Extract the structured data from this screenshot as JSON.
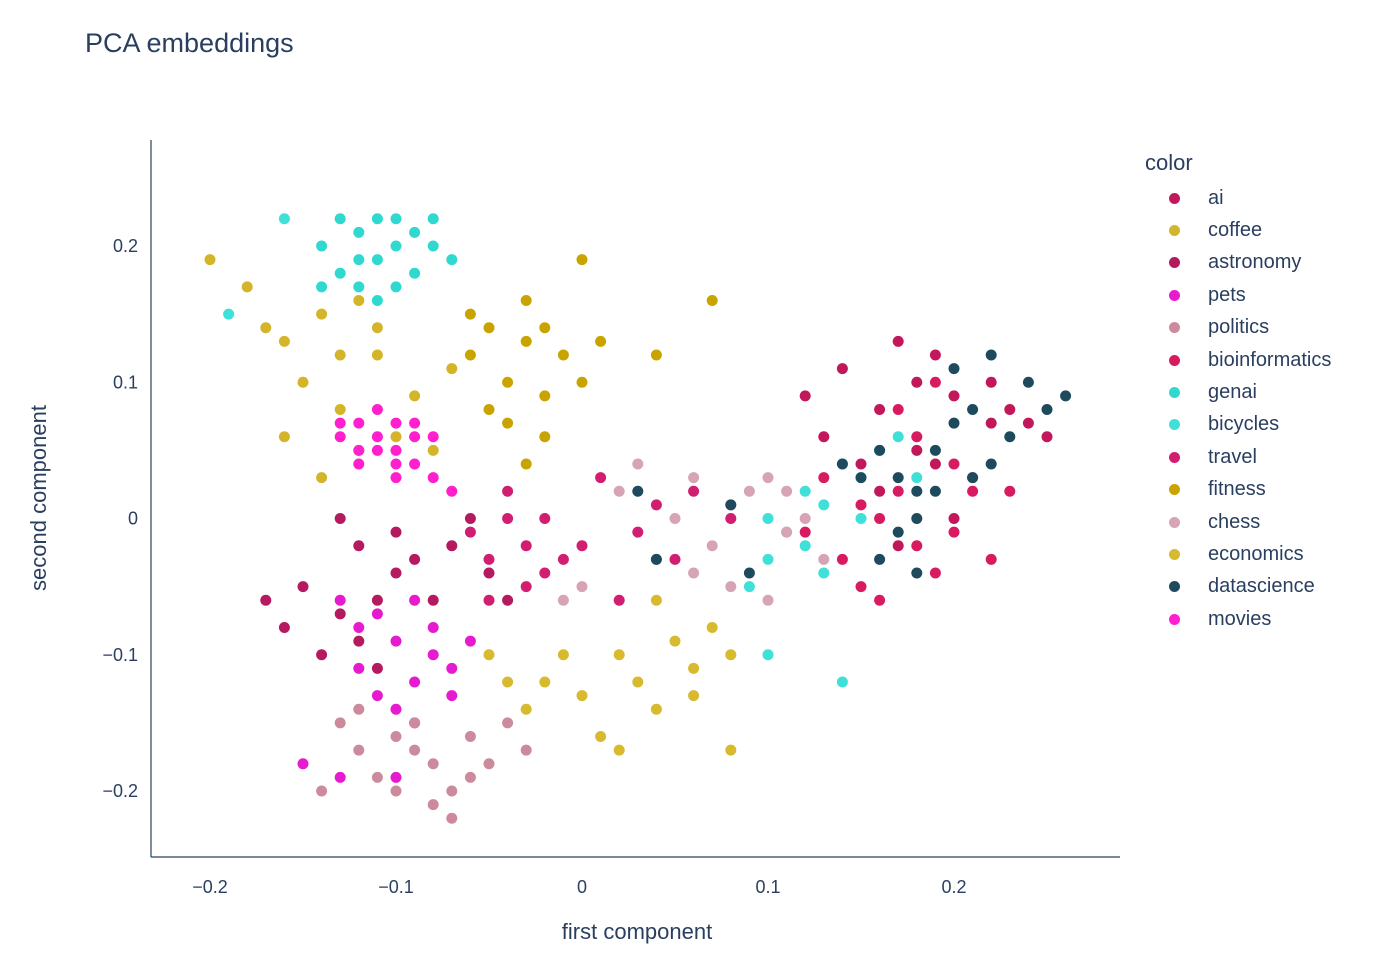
{
  "chart_data": {
    "type": "scatter",
    "title": "PCA embeddings",
    "xlabel": "first component",
    "ylabel": "second component",
    "xlim": [
      -0.23,
      0.29
    ],
    "ylim": [
      -0.25,
      0.275
    ],
    "xticks": [
      -0.2,
      -0.1,
      0,
      0.1,
      0.2
    ],
    "xtick_labels": [
      "−0.2",
      "−0.1",
      "0",
      "0.1",
      "0.2"
    ],
    "yticks": [
      -0.2,
      -0.1,
      0,
      0.1,
      0.2
    ],
    "ytick_labels": [
      "−0.2",
      "−0.1",
      "0",
      "0.1",
      "0.2"
    ],
    "grid": false,
    "legend_title": "color",
    "legend_position": "right",
    "series": [
      {
        "name": "ai",
        "color": "#c2185b",
        "points": [
          [
            0.14,
            0.11
          ],
          [
            0.16,
            0.08
          ],
          [
            0.18,
            0.05
          ],
          [
            0.2,
            0.09
          ],
          [
            0.22,
            0.07
          ],
          [
            0.24,
            0.07
          ],
          [
            0.19,
            0.12
          ],
          [
            0.17,
            0.13
          ],
          [
            0.15,
            0.04
          ],
          [
            0.21,
            0.03
          ],
          [
            0.13,
            0.06
          ],
          [
            0.25,
            0.06
          ],
          [
            0.23,
            0.08
          ],
          [
            0.18,
            0.1
          ],
          [
            0.16,
            0.02
          ],
          [
            0.2,
            0.0
          ],
          [
            0.12,
            0.09
          ],
          [
            0.22,
            0.1
          ],
          [
            0.17,
            -0.02
          ],
          [
            0.19,
            0.04
          ]
        ]
      },
      {
        "name": "coffee",
        "color": "#d4b52a",
        "points": [
          [
            -0.2,
            0.19
          ],
          [
            -0.18,
            0.17
          ],
          [
            -0.16,
            0.13
          ],
          [
            -0.14,
            0.15
          ],
          [
            -0.12,
            0.16
          ],
          [
            -0.15,
            0.1
          ],
          [
            -0.13,
            0.08
          ],
          [
            -0.11,
            0.12
          ],
          [
            -0.1,
            0.06
          ],
          [
            -0.12,
            0.05
          ],
          [
            -0.17,
            0.14
          ],
          [
            -0.14,
            0.03
          ],
          [
            -0.09,
            0.09
          ],
          [
            -0.16,
            0.06
          ],
          [
            -0.11,
            0.14
          ],
          [
            -0.13,
            0.12
          ],
          [
            -0.08,
            0.05
          ],
          [
            -0.07,
            0.11
          ]
        ]
      },
      {
        "name": "astronomy",
        "color": "#b5195f",
        "points": [
          [
            -0.15,
            -0.05
          ],
          [
            -0.13,
            -0.07
          ],
          [
            -0.12,
            -0.02
          ],
          [
            -0.1,
            -0.04
          ],
          [
            -0.14,
            -0.1
          ],
          [
            -0.11,
            -0.06
          ],
          [
            -0.09,
            -0.03
          ],
          [
            -0.12,
            -0.09
          ],
          [
            -0.16,
            -0.08
          ],
          [
            -0.08,
            -0.06
          ],
          [
            -0.1,
            -0.01
          ],
          [
            -0.13,
            0.0
          ],
          [
            -0.07,
            -0.02
          ],
          [
            -0.17,
            -0.06
          ],
          [
            -0.05,
            -0.04
          ],
          [
            -0.04,
            -0.06
          ],
          [
            -0.06,
            0.0
          ],
          [
            -0.11,
            -0.11
          ]
        ]
      },
      {
        "name": "pets",
        "color": "#e61bd0",
        "points": [
          [
            -0.11,
            -0.07
          ],
          [
            -0.1,
            -0.09
          ],
          [
            -0.09,
            -0.12
          ],
          [
            -0.08,
            -0.1
          ],
          [
            -0.12,
            -0.11
          ],
          [
            -0.09,
            -0.06
          ],
          [
            -0.07,
            -0.13
          ],
          [
            -0.1,
            -0.14
          ],
          [
            -0.08,
            -0.08
          ],
          [
            -0.06,
            -0.09
          ],
          [
            -0.11,
            -0.13
          ],
          [
            -0.12,
            -0.08
          ],
          [
            -0.09,
            -0.15
          ],
          [
            -0.07,
            -0.11
          ],
          [
            -0.13,
            -0.06
          ],
          [
            -0.15,
            -0.18
          ],
          [
            -0.13,
            -0.19
          ],
          [
            -0.1,
            -0.19
          ]
        ]
      },
      {
        "name": "politics",
        "color": "#cc8a9d",
        "points": [
          [
            -0.12,
            -0.17
          ],
          [
            -0.1,
            -0.16
          ],
          [
            -0.08,
            -0.18
          ],
          [
            -0.11,
            -0.19
          ],
          [
            -0.07,
            -0.2
          ],
          [
            -0.09,
            -0.17
          ],
          [
            -0.13,
            -0.15
          ],
          [
            -0.06,
            -0.16
          ],
          [
            -0.05,
            -0.18
          ],
          [
            -0.1,
            -0.2
          ],
          [
            -0.08,
            -0.21
          ],
          [
            -0.14,
            -0.2
          ],
          [
            -0.04,
            -0.15
          ],
          [
            -0.06,
            -0.19
          ],
          [
            -0.12,
            -0.14
          ],
          [
            -0.03,
            -0.17
          ],
          [
            -0.07,
            -0.22
          ],
          [
            -0.09,
            -0.15
          ]
        ]
      },
      {
        "name": "bioinformatics",
        "color": "#d81b60",
        "points": [
          [
            0.16,
            0.0
          ],
          [
            0.18,
            -0.02
          ],
          [
            0.2,
            -0.01
          ],
          [
            0.14,
            -0.03
          ],
          [
            0.17,
            0.02
          ],
          [
            0.19,
            -0.04
          ],
          [
            0.15,
            -0.05
          ],
          [
            0.21,
            0.02
          ],
          [
            0.13,
            0.03
          ],
          [
            0.18,
            0.06
          ],
          [
            0.16,
            -0.06
          ],
          [
            0.22,
            -0.03
          ],
          [
            0.12,
            -0.01
          ],
          [
            0.2,
            0.04
          ],
          [
            0.17,
            0.08
          ],
          [
            0.15,
            0.01
          ],
          [
            0.19,
            0.1
          ],
          [
            0.23,
            0.02
          ]
        ]
      },
      {
        "name": "genai",
        "color": "#30d9d0",
        "points": [
          [
            -0.14,
            0.2
          ],
          [
            -0.13,
            0.18
          ],
          [
            -0.12,
            0.21
          ],
          [
            -0.11,
            0.19
          ],
          [
            -0.1,
            0.2
          ],
          [
            -0.12,
            0.17
          ],
          [
            -0.09,
            0.18
          ],
          [
            -0.08,
            0.2
          ],
          [
            -0.13,
            0.22
          ],
          [
            -0.11,
            0.22
          ],
          [
            -0.1,
            0.17
          ],
          [
            -0.14,
            0.17
          ],
          [
            -0.09,
            0.21
          ],
          [
            -0.12,
            0.19
          ],
          [
            -0.08,
            0.22
          ],
          [
            -0.07,
            0.19
          ],
          [
            -0.1,
            0.22
          ],
          [
            -0.11,
            0.16
          ]
        ]
      },
      {
        "name": "bicycles",
        "color": "#3fe0d8",
        "points": [
          [
            0.1,
            -0.03
          ],
          [
            0.12,
            -0.02
          ],
          [
            0.13,
            0.01
          ],
          [
            0.15,
            0.03
          ],
          [
            0.11,
            -0.01
          ],
          [
            0.14,
            0.04
          ],
          [
            0.16,
            0.05
          ],
          [
            0.09,
            -0.05
          ],
          [
            0.12,
            0.02
          ],
          [
            0.1,
            0.0
          ],
          [
            0.15,
            0.0
          ],
          [
            0.17,
            0.06
          ],
          [
            0.18,
            0.03
          ],
          [
            0.13,
            -0.04
          ],
          [
            0.1,
            -0.1
          ],
          [
            0.14,
            -0.12
          ],
          [
            -0.19,
            0.15
          ],
          [
            -0.16,
            0.22
          ]
        ]
      },
      {
        "name": "travel",
        "color": "#d11e71",
        "points": [
          [
            -0.04,
            0.0
          ],
          [
            -0.03,
            -0.02
          ],
          [
            -0.05,
            -0.03
          ],
          [
            -0.02,
            -0.04
          ],
          [
            -0.06,
            -0.01
          ],
          [
            -0.01,
            -0.03
          ],
          [
            -0.03,
            -0.05
          ],
          [
            -0.04,
            0.02
          ],
          [
            -0.02,
            0.0
          ],
          [
            -0.05,
            -0.06
          ],
          [
            0.0,
            -0.02
          ],
          [
            0.01,
            0.03
          ],
          [
            0.02,
            -0.06
          ],
          [
            0.03,
            -0.01
          ],
          [
            0.05,
            -0.03
          ],
          [
            0.04,
            0.01
          ],
          [
            0.06,
            0.02
          ],
          [
            0.08,
            0.0
          ]
        ]
      },
      {
        "name": "fitness",
        "color": "#c9a400",
        "points": [
          [
            -0.05,
            0.14
          ],
          [
            -0.04,
            0.1
          ],
          [
            -0.03,
            0.13
          ],
          [
            -0.02,
            0.09
          ],
          [
            -0.06,
            0.12
          ],
          [
            -0.03,
            0.16
          ],
          [
            -0.01,
            0.12
          ],
          [
            0.0,
            0.1
          ],
          [
            -0.04,
            0.07
          ],
          [
            -0.02,
            0.06
          ],
          [
            -0.05,
            0.08
          ],
          [
            -0.03,
            0.04
          ],
          [
            0.01,
            0.13
          ],
          [
            0.04,
            0.12
          ],
          [
            -0.06,
            0.15
          ],
          [
            0.0,
            0.19
          ],
          [
            -0.02,
            0.14
          ],
          [
            0.07,
            0.16
          ]
        ]
      },
      {
        "name": "chess",
        "color": "#d6a4b2",
        "points": [
          [
            0.05,
            0.0
          ],
          [
            0.07,
            -0.02
          ],
          [
            0.08,
            0.01
          ],
          [
            0.09,
            0.02
          ],
          [
            0.06,
            -0.04
          ],
          [
            0.1,
            0.03
          ],
          [
            0.11,
            -0.01
          ],
          [
            0.04,
            -0.03
          ],
          [
            0.03,
            0.04
          ],
          [
            0.12,
            0.0
          ],
          [
            0.1,
            -0.06
          ],
          [
            0.08,
            -0.05
          ],
          [
            0.06,
            0.03
          ],
          [
            0.13,
            -0.03
          ],
          [
            0.0,
            -0.05
          ],
          [
            -0.01,
            -0.06
          ],
          [
            0.02,
            0.02
          ],
          [
            0.11,
            0.02
          ]
        ]
      },
      {
        "name": "economics",
        "color": "#d7ba2e",
        "points": [
          [
            -0.02,
            -0.12
          ],
          [
            0.0,
            -0.13
          ],
          [
            0.02,
            -0.1
          ],
          [
            -0.01,
            -0.1
          ],
          [
            0.03,
            -0.12
          ],
          [
            0.05,
            -0.09
          ],
          [
            0.04,
            -0.14
          ],
          [
            -0.03,
            -0.14
          ],
          [
            0.01,
            -0.16
          ],
          [
            0.06,
            -0.11
          ],
          [
            -0.04,
            -0.12
          ],
          [
            0.07,
            -0.08
          ],
          [
            0.08,
            -0.1
          ],
          [
            0.02,
            -0.17
          ],
          [
            0.04,
            -0.06
          ],
          [
            -0.05,
            -0.1
          ],
          [
            0.08,
            -0.17
          ],
          [
            0.06,
            -0.13
          ]
        ]
      },
      {
        "name": "datascience",
        "color": "#1e4a5e",
        "points": [
          [
            0.16,
            0.05
          ],
          [
            0.17,
            0.03
          ],
          [
            0.18,
            0.02
          ],
          [
            0.19,
            0.05
          ],
          [
            0.2,
            0.07
          ],
          [
            0.21,
            0.08
          ],
          [
            0.22,
            0.04
          ],
          [
            0.23,
            0.06
          ],
          [
            0.17,
            -0.01
          ],
          [
            0.18,
            0.0
          ],
          [
            0.19,
            0.02
          ],
          [
            0.15,
            0.03
          ],
          [
            0.24,
            0.1
          ],
          [
            0.25,
            0.08
          ],
          [
            0.26,
            0.09
          ],
          [
            0.2,
            0.11
          ],
          [
            0.22,
            0.12
          ],
          [
            0.21,
            0.03
          ],
          [
            0.16,
            -0.03
          ],
          [
            0.18,
            -0.04
          ],
          [
            0.14,
            0.04
          ],
          [
            0.03,
            0.02
          ],
          [
            0.04,
            -0.03
          ],
          [
            0.08,
            0.01
          ],
          [
            0.09,
            -0.04
          ]
        ]
      },
      {
        "name": "movies",
        "color": "#ff1fce",
        "points": [
          [
            -0.12,
            0.07
          ],
          [
            -0.11,
            0.06
          ],
          [
            -0.1,
            0.07
          ],
          [
            -0.09,
            0.06
          ],
          [
            -0.11,
            0.05
          ],
          [
            -0.1,
            0.04
          ],
          [
            -0.12,
            0.05
          ],
          [
            -0.09,
            0.07
          ],
          [
            -0.08,
            0.06
          ],
          [
            -0.11,
            0.08
          ],
          [
            -0.13,
            0.06
          ],
          [
            -0.1,
            0.05
          ],
          [
            -0.09,
            0.04
          ],
          [
            -0.12,
            0.04
          ],
          [
            -0.08,
            0.03
          ],
          [
            -0.13,
            0.07
          ],
          [
            -0.07,
            0.02
          ],
          [
            -0.1,
            0.03
          ]
        ]
      }
    ]
  }
}
